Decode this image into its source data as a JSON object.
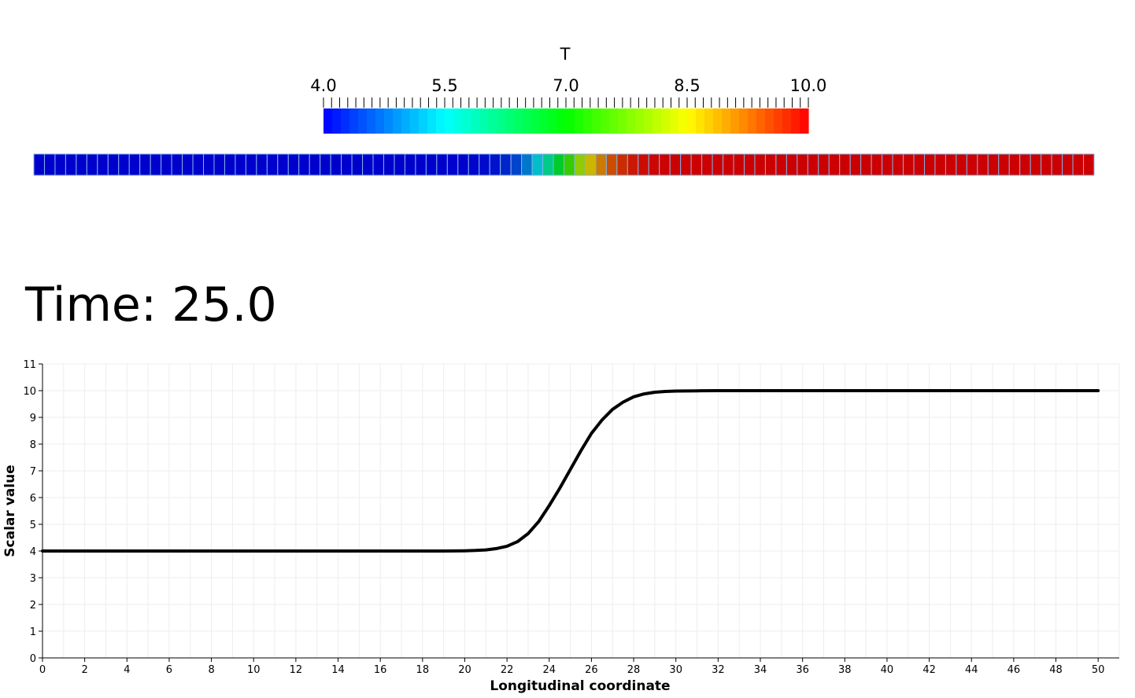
{
  "colorbar": {
    "title": "T",
    "range": [
      4.0,
      10.0
    ],
    "labels": [
      "4.0",
      "5.5",
      "7.0",
      "8.5",
      "10.0"
    ],
    "label_values": [
      4.0,
      5.5,
      7.0,
      8.5,
      10.0
    ],
    "colormap": "jet",
    "color_stops": [
      "#0000ff",
      "#00ffff",
      "#00ff00",
      "#ffff00",
      "#ff0000"
    ]
  },
  "time_label": "Time: 25.0",
  "strip": {
    "cell_count": 100,
    "grid_color": "#7fb2e5"
  },
  "chart_data": {
    "type": "line",
    "xlabel": "Longitudinal coordinate",
    "ylabel": "Scalar value",
    "xlim": [
      0,
      51
    ],
    "ylim": [
      0,
      11
    ],
    "xticks": [
      0,
      2,
      4,
      6,
      8,
      10,
      12,
      14,
      16,
      18,
      20,
      22,
      24,
      26,
      28,
      30,
      32,
      34,
      36,
      38,
      40,
      42,
      44,
      46,
      48,
      50
    ],
    "yticks": [
      0,
      1,
      2,
      3,
      4,
      5,
      6,
      7,
      8,
      9,
      10,
      11
    ],
    "grid": true,
    "legend": false,
    "series": [
      {
        "color": "#000000",
        "x": [
          0,
          2,
          4,
          6,
          8,
          10,
          12,
          14,
          16,
          18,
          19,
          20,
          20.5,
          21,
          21.5,
          22,
          22.5,
          23,
          23.5,
          24,
          24.5,
          25,
          25.5,
          26,
          26.5,
          27,
          27.5,
          28,
          28.5,
          29,
          29.5,
          30,
          31,
          32,
          34,
          36,
          38,
          40,
          42,
          44,
          46,
          48,
          50
        ],
        "y": [
          4.0,
          4.0,
          4.0,
          4.0,
          4.0,
          4.0,
          4.0,
          4.0,
          4.0,
          4.0,
          4.0,
          4.01,
          4.02,
          4.04,
          4.09,
          4.18,
          4.35,
          4.65,
          5.1,
          5.7,
          6.35,
          7.05,
          7.75,
          8.4,
          8.9,
          9.3,
          9.57,
          9.77,
          9.88,
          9.94,
          9.97,
          9.985,
          9.995,
          10.0,
          10.0,
          10.0,
          10.0,
          10.0,
          10.0,
          10.0,
          10.0,
          10.0,
          10.0
        ]
      }
    ]
  }
}
